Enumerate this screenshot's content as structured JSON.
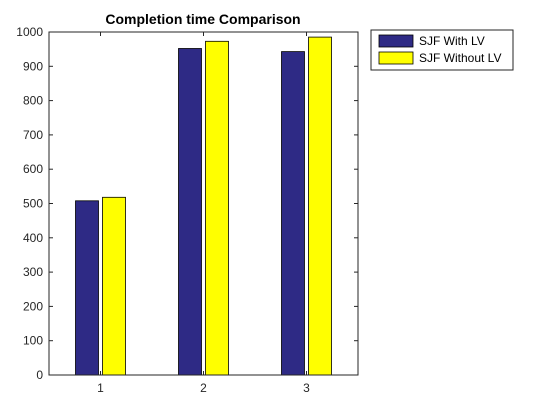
{
  "chart_data": {
    "type": "bar",
    "title": "Completion time Comparison",
    "xlabel": "",
    "ylabel": "",
    "categories": [
      "1",
      "2",
      "3"
    ],
    "series": [
      {
        "name": "SJF With LV",
        "values": [
          508,
          952,
          943
        ],
        "color": "#2e2a85"
      },
      {
        "name": "SJF Without LV",
        "values": [
          518,
          973,
          985
        ],
        "color": "#ffff00"
      }
    ],
    "ylim": [
      0,
      1000
    ],
    "yticks": [
      0,
      100,
      200,
      300,
      400,
      500,
      600,
      700,
      800,
      900,
      1000
    ],
    "grid": false,
    "legend_position": "outside-top-right"
  }
}
